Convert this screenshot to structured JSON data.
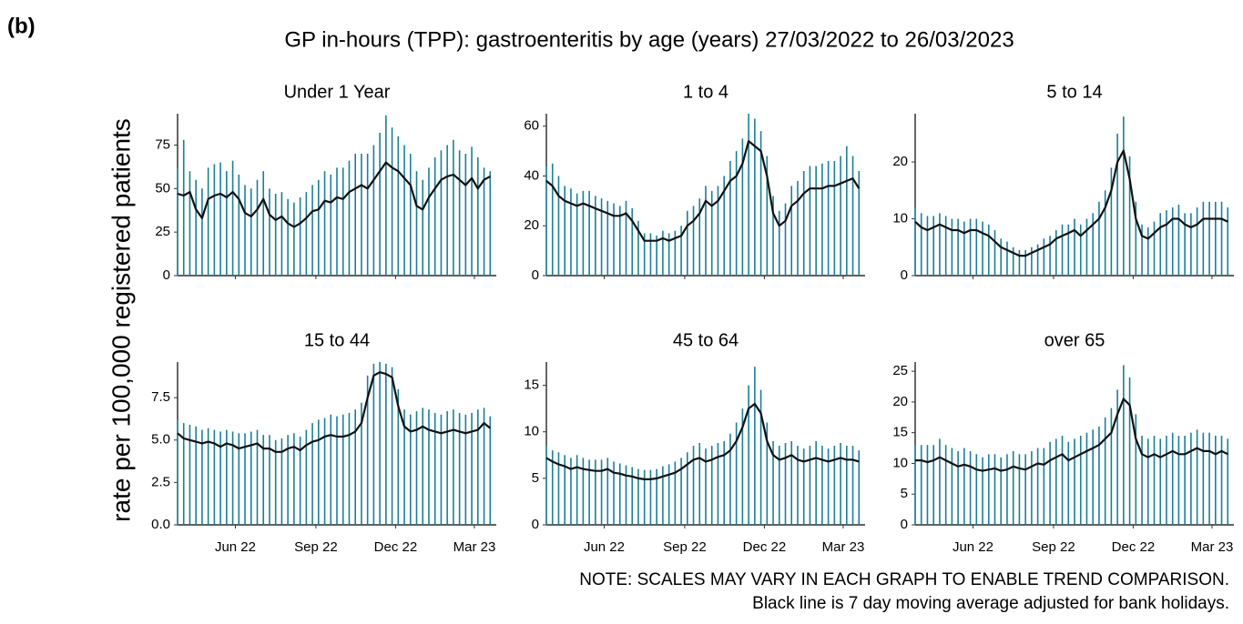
{
  "figure_label": "(b)",
  "title": "GP in-hours (TPP): gastroenteritis by age (years) 27/03/2022 to 26/03/2023",
  "y_label": "rate per 100,000 registered patients",
  "notes": [
    "NOTE: SCALES MAY VARY IN EACH GRAPH TO ENABLE TREND COMPARISON.",
    "Black line is 7 day moving average adjusted for bank holidays."
  ],
  "chart_data": [
    {
      "type": "line",
      "title": "Under 1 Year",
      "x": [
        0,
        7,
        14,
        21,
        28,
        35,
        42,
        49,
        56,
        63,
        70,
        77,
        84,
        91,
        98,
        105,
        112,
        119,
        126,
        133,
        140,
        147,
        154,
        161,
        168,
        175,
        182,
        189,
        196,
        203,
        210,
        217,
        224,
        231,
        238,
        245,
        252,
        259,
        266,
        273,
        280,
        287,
        294,
        301,
        308,
        315,
        322,
        329,
        336,
        343,
        350,
        357
      ],
      "xlim": [
        0,
        364
      ],
      "xticks": [
        {
          "value": 66,
          "label": "Jun 22"
        },
        {
          "value": 158,
          "label": "Sep 22"
        },
        {
          "value": 249,
          "label": "Dec 22"
        },
        {
          "value": 339,
          "label": "Mar 23"
        }
      ],
      "ylim": [
        0,
        93
      ],
      "yticks": [
        0,
        25,
        50,
        75
      ],
      "series": [
        {
          "color": "#1b7f95",
          "style": "spike",
          "values": [
            62,
            78,
            60,
            55,
            50,
            62,
            64,
            65,
            60,
            66,
            58,
            52,
            50,
            55,
            60,
            50,
            47,
            48,
            44,
            42,
            45,
            48,
            52,
            55,
            60,
            58,
            62,
            62,
            66,
            70,
            70,
            70,
            75,
            82,
            92,
            85,
            80,
            75,
            70,
            60,
            55,
            62,
            68,
            72,
            75,
            78,
            72,
            70,
            74,
            68,
            62,
            60
          ]
        },
        {
          "color": "#111111",
          "style": "line",
          "values": [
            47,
            46,
            48,
            38,
            33,
            44,
            46,
            47,
            45,
            48,
            44,
            36,
            34,
            38,
            44,
            35,
            32,
            34,
            30,
            28,
            30,
            33,
            37,
            38,
            43,
            42,
            45,
            44,
            48,
            50,
            52,
            50,
            55,
            60,
            65,
            62,
            60,
            56,
            52,
            40,
            38,
            45,
            50,
            55,
            57,
            58,
            55,
            52,
            56,
            50,
            55,
            57
          ]
        }
      ]
    },
    {
      "type": "line",
      "title": "1 to 4",
      "x": [
        0,
        7,
        14,
        21,
        28,
        35,
        42,
        49,
        56,
        63,
        70,
        77,
        84,
        91,
        98,
        105,
        112,
        119,
        126,
        133,
        140,
        147,
        154,
        161,
        168,
        175,
        182,
        189,
        196,
        203,
        210,
        217,
        224,
        231,
        238,
        245,
        252,
        259,
        266,
        273,
        280,
        287,
        294,
        301,
        308,
        315,
        322,
        329,
        336,
        343,
        350,
        357
      ],
      "xlim": [
        0,
        364
      ],
      "xticks": [
        {
          "value": 66,
          "label": "Jun 22"
        },
        {
          "value": 158,
          "label": "Sep 22"
        },
        {
          "value": 249,
          "label": "Dec 22"
        },
        {
          "value": 339,
          "label": "Mar 23"
        }
      ],
      "ylim": [
        0,
        65
      ],
      "yticks": [
        0,
        20,
        40,
        60
      ],
      "series": [
        {
          "color": "#1b7f95",
          "style": "spike",
          "values": [
            44,
            45,
            40,
            36,
            35,
            33,
            34,
            34,
            32,
            31,
            30,
            29,
            28,
            30,
            27,
            22,
            17,
            17,
            16,
            18,
            17,
            18,
            20,
            26,
            28,
            31,
            36,
            34,
            36,
            40,
            46,
            50,
            55,
            65,
            63,
            58,
            48,
            32,
            26,
            29,
            36,
            38,
            42,
            44,
            44,
            45,
            46,
            46,
            48,
            52,
            48,
            42
          ]
        },
        {
          "color": "#111111",
          "style": "line",
          "values": [
            38,
            36,
            32,
            30,
            29,
            28,
            29,
            28,
            27,
            26,
            25,
            24,
            24,
            25,
            22,
            18,
            14,
            14,
            14,
            15,
            14,
            15,
            16,
            20,
            22,
            25,
            30,
            28,
            30,
            34,
            38,
            40,
            45,
            54,
            52,
            50,
            40,
            25,
            20,
            22,
            28,
            30,
            33,
            35,
            35,
            35,
            36,
            36,
            37,
            38,
            39,
            35
          ]
        }
      ]
    },
    {
      "type": "line",
      "title": "5 to 14",
      "x": [
        0,
        7,
        14,
        21,
        28,
        35,
        42,
        49,
        56,
        63,
        70,
        77,
        84,
        91,
        98,
        105,
        112,
        119,
        126,
        133,
        140,
        147,
        154,
        161,
        168,
        175,
        182,
        189,
        196,
        203,
        210,
        217,
        224,
        231,
        238,
        245,
        252,
        259,
        266,
        273,
        280,
        287,
        294,
        301,
        308,
        315,
        322,
        329,
        336,
        343,
        350,
        357
      ],
      "xlim": [
        0,
        364
      ],
      "xticks": [
        {
          "value": 66,
          "label": "Jun 22"
        },
        {
          "value": 158,
          "label": "Sep 22"
        },
        {
          "value": 249,
          "label": "Dec 22"
        },
        {
          "value": 339,
          "label": "Mar 23"
        }
      ],
      "ylim": [
        0,
        28.5
      ],
      "yticks": [
        0,
        10,
        20
      ],
      "series": [
        {
          "color": "#1b7f95",
          "style": "spike",
          "values": [
            12,
            11,
            10.5,
            10.5,
            11,
            10.5,
            10,
            10,
            9.5,
            10,
            10,
            9.5,
            9,
            8,
            6.5,
            6,
            5,
            4.5,
            4.5,
            5,
            5.5,
            6.5,
            7,
            8,
            9,
            9,
            10,
            9,
            10,
            11,
            13,
            15,
            19,
            25,
            28,
            21,
            13,
            9,
            8.5,
            9.5,
            11,
            11.5,
            12,
            12.5,
            11,
            11,
            12,
            13,
            13,
            13,
            13,
            12
          ]
        },
        {
          "color": "#111111",
          "style": "line",
          "values": [
            9.5,
            8.5,
            8,
            8.5,
            9,
            8.5,
            8,
            8,
            7.5,
            8,
            8,
            7.5,
            7,
            6,
            5,
            4.5,
            4,
            3.5,
            3.5,
            4,
            4.5,
            5,
            5.5,
            6.5,
            7,
            7.5,
            8,
            7,
            8,
            9,
            10,
            12,
            15,
            20,
            22,
            17,
            10,
            7,
            6.5,
            7.5,
            8.5,
            9,
            10,
            10,
            9,
            8.5,
            9,
            10,
            10,
            10,
            10,
            9.5
          ]
        }
      ]
    },
    {
      "type": "line",
      "title": "15 to 44",
      "x": [
        0,
        7,
        14,
        21,
        28,
        35,
        42,
        49,
        56,
        63,
        70,
        77,
        84,
        91,
        98,
        105,
        112,
        119,
        126,
        133,
        140,
        147,
        154,
        161,
        168,
        175,
        182,
        189,
        196,
        203,
        210,
        217,
        224,
        231,
        238,
        245,
        252,
        259,
        266,
        273,
        280,
        287,
        294,
        301,
        308,
        315,
        322,
        329,
        336,
        343,
        350,
        357
      ],
      "xlim": [
        0,
        364
      ],
      "xticks": [
        {
          "value": 66,
          "label": "Jun 22"
        },
        {
          "value": 158,
          "label": "Sep 22"
        },
        {
          "value": 249,
          "label": "Dec 22"
        },
        {
          "value": 339,
          "label": "Mar 23"
        }
      ],
      "ylim": [
        0,
        9.6
      ],
      "yticks": [
        {
          "value": 0,
          "label": "0.0"
        },
        2.5,
        {
          "value": 5,
          "label": "5.0"
        },
        7.5
      ],
      "series": [
        {
          "color": "#1b7f95",
          "style": "spike",
          "values": [
            6.2,
            6.0,
            5.9,
            5.8,
            5.6,
            5.7,
            5.6,
            5.5,
            5.6,
            5.5,
            5.4,
            5.4,
            5.5,
            5.6,
            5.3,
            5.3,
            5.0,
            5.1,
            5.3,
            5.4,
            5.2,
            5.6,
            6.0,
            6.2,
            6.3,
            6.5,
            6.4,
            6.5,
            6.6,
            6.8,
            7.2,
            8.8,
            9.5,
            9.6,
            9.5,
            9.3,
            8.0,
            6.8,
            6.5,
            6.7,
            6.9,
            6.8,
            6.6,
            6.5,
            6.7,
            6.8,
            6.6,
            6.5,
            6.6,
            6.8,
            6.9,
            6.4
          ]
        },
        {
          "color": "#111111",
          "style": "line",
          "values": [
            5.4,
            5.1,
            5.0,
            4.9,
            4.8,
            4.9,
            4.8,
            4.6,
            4.8,
            4.7,
            4.5,
            4.6,
            4.7,
            4.8,
            4.5,
            4.5,
            4.3,
            4.3,
            4.5,
            4.6,
            4.4,
            4.7,
            4.9,
            5.0,
            5.2,
            5.3,
            5.2,
            5.2,
            5.3,
            5.5,
            6.0,
            7.5,
            8.8,
            9.0,
            8.9,
            8.7,
            7.0,
            5.8,
            5.5,
            5.6,
            5.8,
            5.6,
            5.5,
            5.4,
            5.5,
            5.6,
            5.5,
            5.4,
            5.5,
            5.6,
            6.0,
            5.7
          ]
        }
      ]
    },
    {
      "type": "line",
      "title": "45 to 64",
      "x": [
        0,
        7,
        14,
        21,
        28,
        35,
        42,
        49,
        56,
        63,
        70,
        77,
        84,
        91,
        98,
        105,
        112,
        119,
        126,
        133,
        140,
        147,
        154,
        161,
        168,
        175,
        182,
        189,
        196,
        203,
        210,
        217,
        224,
        231,
        238,
        245,
        252,
        259,
        266,
        273,
        280,
        287,
        294,
        301,
        308,
        315,
        322,
        329,
        336,
        343,
        350,
        357
      ],
      "xlim": [
        0,
        364
      ],
      "xticks": [
        {
          "value": 66,
          "label": "Jun 22"
        },
        {
          "value": 158,
          "label": "Sep 22"
        },
        {
          "value": 249,
          "label": "Dec 22"
        },
        {
          "value": 339,
          "label": "Mar 23"
        }
      ],
      "ylim": [
        0,
        17.5
      ],
      "yticks": [
        0,
        5,
        10,
        15
      ],
      "series": [
        {
          "color": "#1b7f95",
          "style": "spike",
          "values": [
            8.5,
            8.0,
            7.8,
            7.5,
            7.2,
            7.5,
            7.2,
            7.0,
            7.0,
            7.0,
            7.2,
            6.8,
            6.6,
            6.4,
            6.2,
            6.0,
            5.9,
            5.9,
            6.0,
            6.3,
            6.5,
            6.8,
            7.2,
            7.8,
            8.5,
            8.8,
            8.2,
            8.5,
            8.8,
            9.0,
            9.8,
            11.0,
            12.5,
            15.0,
            17.0,
            14.5,
            11.0,
            9.0,
            8.5,
            8.8,
            9.0,
            8.5,
            8.2,
            8.5,
            9.0,
            8.5,
            8.2,
            8.5,
            8.8,
            8.5,
            8.5,
            8.0
          ]
        },
        {
          "color": "#111111",
          "style": "line",
          "values": [
            7.2,
            6.8,
            6.5,
            6.3,
            6.0,
            6.2,
            6.0,
            5.9,
            5.8,
            5.8,
            6.0,
            5.6,
            5.5,
            5.3,
            5.2,
            5.0,
            4.9,
            4.9,
            5.0,
            5.2,
            5.4,
            5.6,
            6.0,
            6.5,
            7.0,
            7.2,
            6.8,
            7.0,
            7.3,
            7.5,
            8.0,
            9.0,
            10.5,
            12.5,
            13.0,
            12.0,
            9.0,
            7.5,
            7.0,
            7.2,
            7.5,
            7.0,
            6.8,
            7.0,
            7.2,
            7.0,
            6.8,
            7.0,
            7.2,
            7.0,
            7.0,
            6.8
          ]
        }
      ]
    },
    {
      "type": "line",
      "title": "over 65",
      "x": [
        0,
        7,
        14,
        21,
        28,
        35,
        42,
        49,
        56,
        63,
        70,
        77,
        84,
        91,
        98,
        105,
        112,
        119,
        126,
        133,
        140,
        147,
        154,
        161,
        168,
        175,
        182,
        189,
        196,
        203,
        210,
        217,
        224,
        231,
        238,
        245,
        252,
        259,
        266,
        273,
        280,
        287,
        294,
        301,
        308,
        315,
        322,
        329,
        336,
        343,
        350,
        357
      ],
      "xlim": [
        0,
        364
      ],
      "xticks": [
        {
          "value": 66,
          "label": "Jun 22"
        },
        {
          "value": 158,
          "label": "Sep 22"
        },
        {
          "value": 249,
          "label": "Dec 22"
        },
        {
          "value": 339,
          "label": "Mar 23"
        }
      ],
      "ylim": [
        0,
        26.5
      ],
      "yticks": [
        0,
        5,
        10,
        15,
        20,
        25
      ],
      "series": [
        {
          "color": "#1b7f95",
          "style": "spike",
          "values": [
            13,
            13,
            13,
            13,
            14,
            13,
            12.5,
            12,
            12.5,
            12,
            11.5,
            11,
            11.5,
            11.5,
            11,
            11.5,
            12,
            11.5,
            11.5,
            12,
            12.5,
            12.5,
            13.5,
            14,
            14.5,
            13.5,
            14,
            14.5,
            15,
            15.5,
            16,
            17.5,
            19,
            22,
            26,
            24,
            18,
            14.5,
            14,
            14.5,
            14,
            14.5,
            15,
            14.5,
            14.5,
            15,
            15.5,
            15,
            15,
            14.5,
            14.5,
            14
          ]
        },
        {
          "color": "#111111",
          "style": "line",
          "values": [
            10.5,
            10.5,
            10.2,
            10.5,
            11,
            10.5,
            10.0,
            9.5,
            9.8,
            9.5,
            9.0,
            8.8,
            9.0,
            9.2,
            8.8,
            9.0,
            9.5,
            9.2,
            9.0,
            9.5,
            10.0,
            9.8,
            10.5,
            11,
            11.5,
            10.5,
            11,
            11.5,
            12,
            12.5,
            13,
            14,
            15,
            18,
            20.5,
            19.5,
            14,
            11.5,
            11,
            11.5,
            11,
            11.5,
            12,
            11.5,
            11.5,
            12,
            12.5,
            12,
            12,
            11.5,
            12,
            11.5
          ]
        }
      ]
    }
  ]
}
